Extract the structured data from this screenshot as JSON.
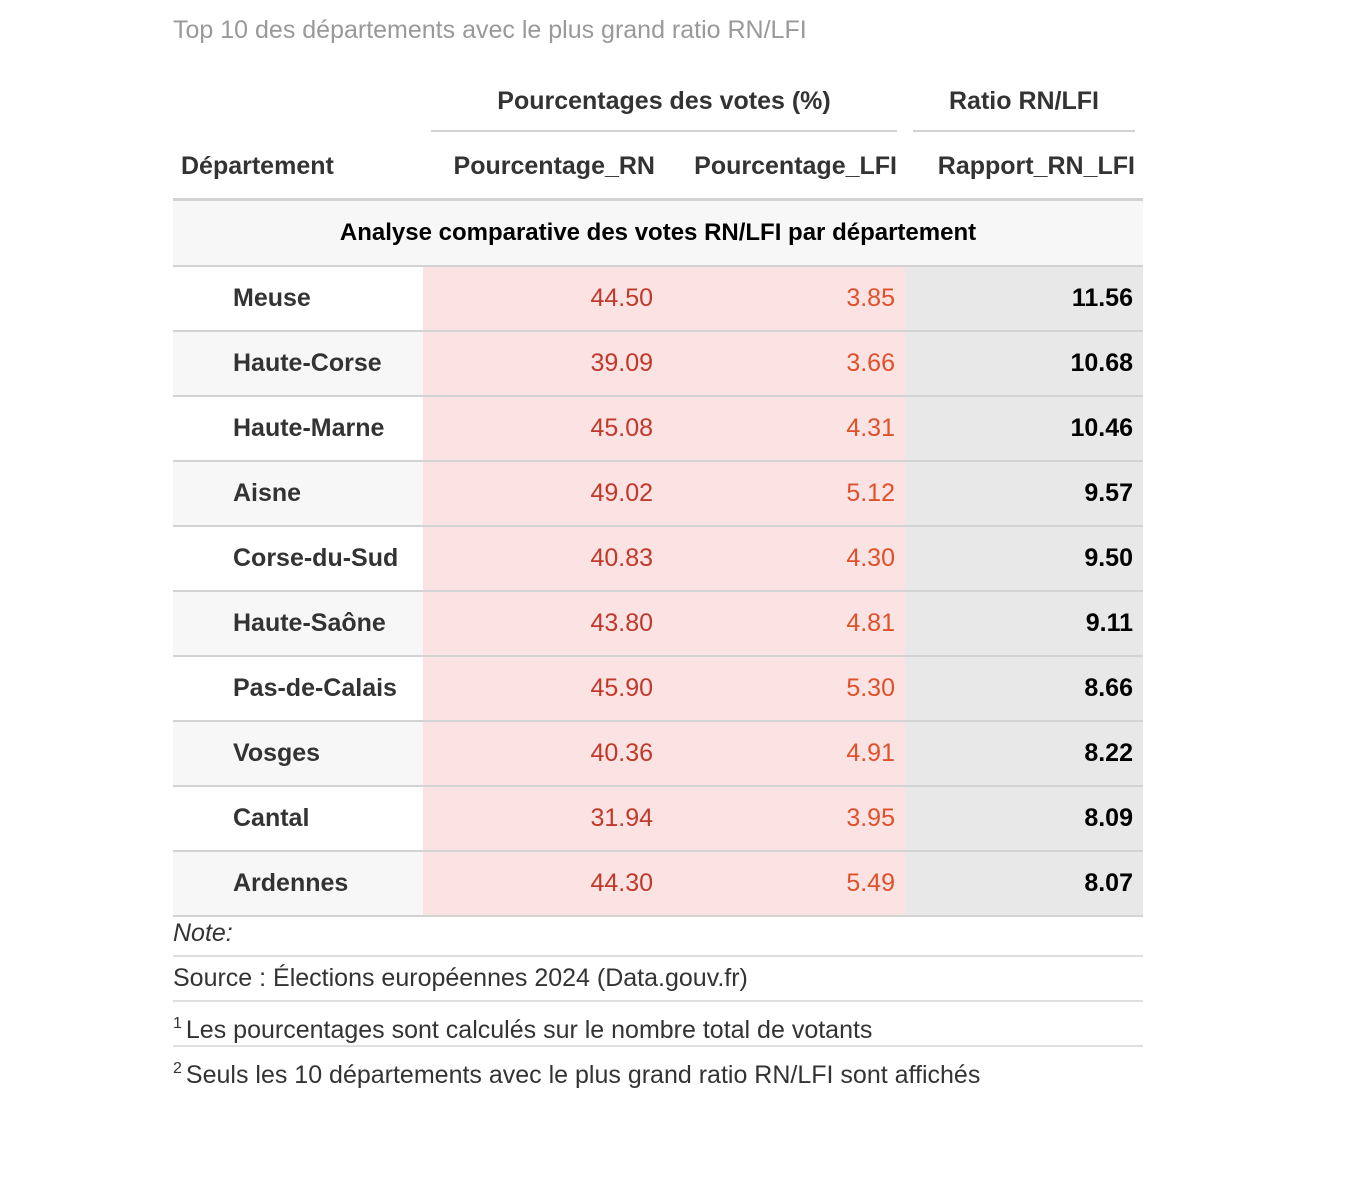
{
  "title": "Top 10 des départements avec le plus grand ratio RN/LFI",
  "table": {
    "spanners": [
      "Pourcentages des votes (%)",
      "Ratio RN/LFI"
    ],
    "columns": [
      "Département",
      "Pourcentage_RN",
      "Pourcentage_LFI",
      "Rapport_RN_LFI"
    ],
    "group": "Analyse comparative des votes RN/LFI par département",
    "rows": [
      [
        "Meuse",
        "44.50",
        "3.85",
        "11.56"
      ],
      [
        "Haute-Corse",
        "39.09",
        "3.66",
        "10.68"
      ],
      [
        "Haute-Marne",
        "45.08",
        "4.31",
        "10.46"
      ],
      [
        "Aisne",
        "49.02",
        "5.12",
        "9.57"
      ],
      [
        "Corse-du-Sud",
        "40.83",
        "4.30",
        "9.50"
      ],
      [
        "Haute-Saône",
        "43.80",
        "4.81",
        "9.11"
      ],
      [
        "Pas-de-Calais",
        "45.90",
        "5.30",
        "8.66"
      ],
      [
        "Vosges",
        "40.36",
        "4.91",
        "8.22"
      ],
      [
        "Cantal",
        "31.94",
        "3.95",
        "8.09"
      ],
      [
        "Ardennes",
        "44.30",
        "5.49",
        "8.07"
      ]
    ]
  },
  "footer": {
    "note": "Note:",
    "source": "Source : Élections européennes 2024 (Data.gouv.fr)",
    "footnotes": [
      {
        "mark": "1",
        "text": "Les pourcentages sont calculés sur le nombre total de votants"
      },
      {
        "mark": "2",
        "text": "Seuls les 10 départements avec le plus grand ratio RN/LFI sont affichés"
      }
    ]
  }
}
